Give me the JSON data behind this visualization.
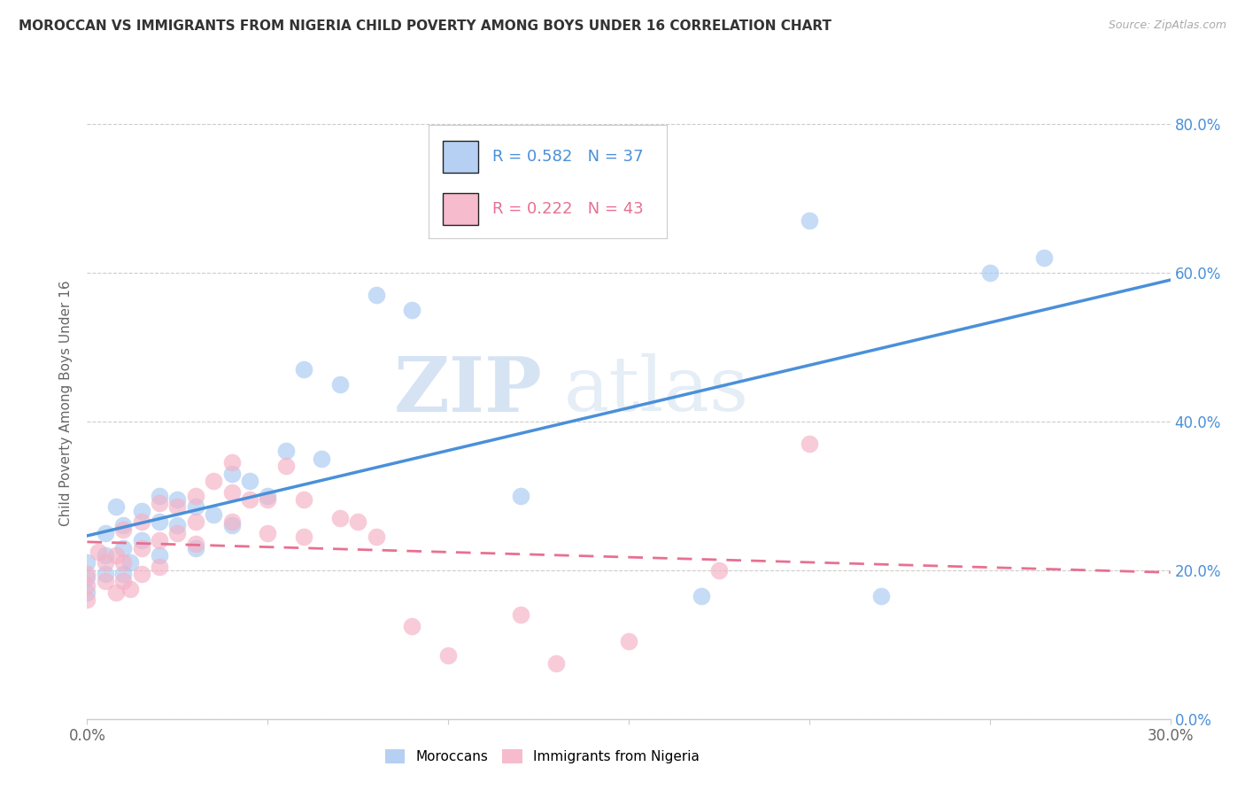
{
  "title": "MOROCCAN VS IMMIGRANTS FROM NIGERIA CHILD POVERTY AMONG BOYS UNDER 16 CORRELATION CHART",
  "source": "Source: ZipAtlas.com",
  "ylabel": "Child Poverty Among Boys Under 16",
  "xlim": [
    0.0,
    0.3
  ],
  "ylim": [
    0.0,
    0.85
  ],
  "moroccan_R": "0.582",
  "moroccan_N": "37",
  "nigeria_R": "0.222",
  "nigeria_N": "43",
  "moroccan_color": "#a8c8f0",
  "nigeria_color": "#f5b0c5",
  "moroccan_line_color": "#4a90d9",
  "nigeria_line_color": "#e87090",
  "watermark_zip": "ZIP",
  "watermark_atlas": "atlas",
  "moroccan_scatter_x": [
    0.0,
    0.0,
    0.0,
    0.005,
    0.005,
    0.005,
    0.008,
    0.01,
    0.01,
    0.01,
    0.012,
    0.015,
    0.015,
    0.02,
    0.02,
    0.02,
    0.025,
    0.025,
    0.03,
    0.03,
    0.035,
    0.04,
    0.04,
    0.045,
    0.05,
    0.055,
    0.06,
    0.065,
    0.07,
    0.08,
    0.09,
    0.12,
    0.17,
    0.2,
    0.22,
    0.25,
    0.265
  ],
  "moroccan_scatter_y": [
    0.21,
    0.19,
    0.17,
    0.25,
    0.22,
    0.195,
    0.285,
    0.26,
    0.23,
    0.195,
    0.21,
    0.28,
    0.24,
    0.3,
    0.265,
    0.22,
    0.295,
    0.26,
    0.285,
    0.23,
    0.275,
    0.33,
    0.26,
    0.32,
    0.3,
    0.36,
    0.47,
    0.35,
    0.45,
    0.57,
    0.55,
    0.3,
    0.165,
    0.67,
    0.165,
    0.6,
    0.62
  ],
  "nigeria_scatter_x": [
    0.0,
    0.0,
    0.0,
    0.003,
    0.005,
    0.005,
    0.008,
    0.008,
    0.01,
    0.01,
    0.01,
    0.012,
    0.015,
    0.015,
    0.015,
    0.02,
    0.02,
    0.02,
    0.025,
    0.025,
    0.03,
    0.03,
    0.03,
    0.035,
    0.04,
    0.04,
    0.04,
    0.045,
    0.05,
    0.05,
    0.055,
    0.06,
    0.06,
    0.07,
    0.075,
    0.08,
    0.09,
    0.1,
    0.12,
    0.13,
    0.15,
    0.175,
    0.2
  ],
  "nigeria_scatter_y": [
    0.195,
    0.18,
    0.16,
    0.225,
    0.21,
    0.185,
    0.22,
    0.17,
    0.255,
    0.21,
    0.185,
    0.175,
    0.265,
    0.23,
    0.195,
    0.29,
    0.24,
    0.205,
    0.285,
    0.25,
    0.3,
    0.265,
    0.235,
    0.32,
    0.345,
    0.305,
    0.265,
    0.295,
    0.295,
    0.25,
    0.34,
    0.295,
    0.245,
    0.27,
    0.265,
    0.245,
    0.125,
    0.085,
    0.14,
    0.075,
    0.105,
    0.2,
    0.37
  ]
}
